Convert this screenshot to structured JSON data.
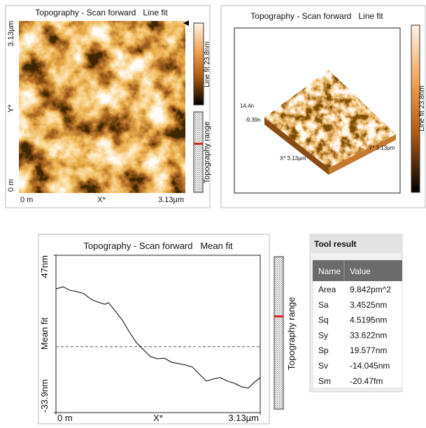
{
  "panels": [
    {
      "title": "Topography - Scan forward   Line fit",
      "y_label_top": "3.13µm",
      "y_label": "Y*",
      "y_label_bottom": "0 m",
      "x_label_left": "0 m",
      "x_label": "X*",
      "x_label_right": "3.13µm",
      "colorbar_label": "Line fit 23.8nm",
      "range_label": "Topography range"
    },
    {
      "title": "Topography - Scan forward   Line fit",
      "z_max": "14.4n",
      "z_min": "-9.39n",
      "x_axis": "X* 3.13µm",
      "y_axis": "Y* 3.13µm",
      "colorbar_label": "Line fit 23.8nm"
    }
  ],
  "chart_data": {
    "type": "line",
    "title": "Topography - Scan forward   Mean fit",
    "y_label": "Mean fit",
    "x_label": "X*",
    "range_label": "Topography range",
    "color": "#000000",
    "x": [
      0,
      0.107,
      0.214,
      0.322,
      0.429,
      0.536,
      0.643,
      0.75,
      0.804,
      0.911,
      1.018,
      1.126,
      1.233,
      1.34,
      1.447,
      1.554,
      1.661,
      1.769,
      1.876,
      1.983,
      2.09,
      2.197,
      2.305,
      2.412,
      2.519,
      2.626,
      2.733,
      2.841,
      2.948,
      3.023,
      3.13
    ],
    "values": [
      29.7,
      30.8,
      29.0,
      28.3,
      27.2,
      24.4,
      22.9,
      21.8,
      22.6,
      18.2,
      13.6,
      7.5,
      2.1,
      -1.5,
      -5.1,
      -6.2,
      -5.9,
      -8.0,
      -8.7,
      -9.4,
      -10.5,
      -14.1,
      -17.7,
      -16.6,
      -15.9,
      -17.7,
      -18.8,
      -20.6,
      -21.3,
      -18.8,
      -15.9
    ],
    "xlim": [
      0,
      3.13
    ],
    "ylim": [
      -33.9,
      47
    ],
    "xticks": [
      {
        "value": 0,
        "label": "0 m"
      },
      {
        "value": 3.13,
        "label": "3.13µm"
      }
    ],
    "yticks": [
      {
        "value": -33.9,
        "label": "-33.9nm"
      },
      {
        "value": 47,
        "label": "47nm"
      }
    ]
  },
  "tool_result": {
    "title": "Tool result",
    "columns": [
      "Name",
      "Value"
    ],
    "rows": [
      [
        "Area",
        "9.842pm^2"
      ],
      [
        "Sa",
        "3.4525nm"
      ],
      [
        "Sq",
        "4.5195nm"
      ],
      [
        "Sy",
        "33.622nm"
      ],
      [
        "Sp",
        "19.577nm"
      ],
      [
        "Sv",
        "-14.045nm"
      ],
      [
        "Sm",
        "-20.47fm"
      ]
    ]
  }
}
